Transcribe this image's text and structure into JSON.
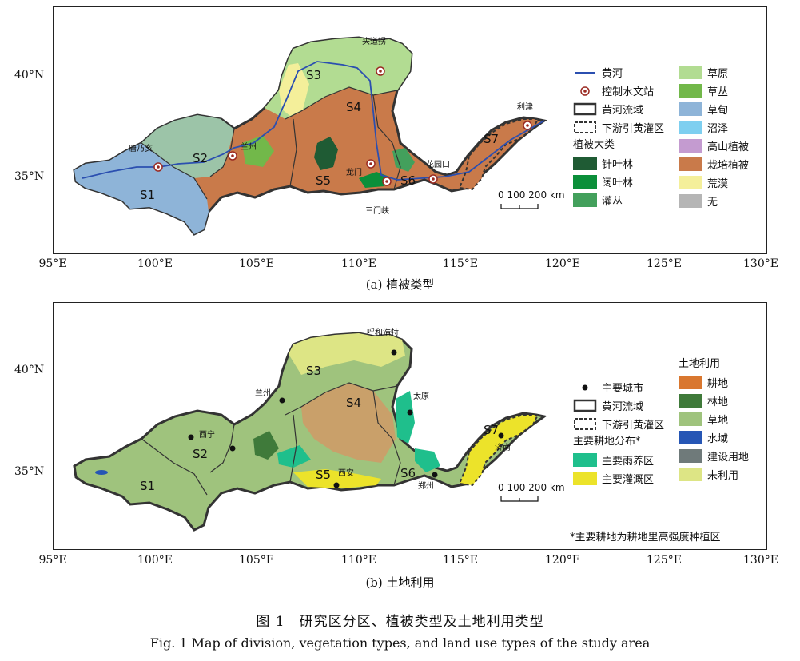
{
  "figure": {
    "caption_zh": "图 1　研究区分区、植被类型及土地利用类型",
    "caption_en": "Fig. 1   Map of division, vegetation types, and land use types of the study area"
  },
  "axes": {
    "x_ticks": [
      "95°E",
      "100°E",
      "105°E",
      "110°E",
      "115°E",
      "120°E",
      "125°E",
      "130°E"
    ],
    "y_ticks": [
      "40°N",
      "35°N"
    ]
  },
  "panel_a": {
    "subtitle": "(a) 植被类型",
    "regions": [
      "S1",
      "S2",
      "S3",
      "S4",
      "S5",
      "S6",
      "S7"
    ],
    "stations": [
      "唐乃亥",
      "兰州",
      "头道拐",
      "龙门",
      "三门峡",
      "花园口",
      "利津"
    ],
    "legend_col1": {
      "items": [
        {
          "label": "黄河",
          "symbol": "river-line"
        },
        {
          "label": "控制水文站",
          "symbol": "station-marker"
        },
        {
          "label": "黄河流域",
          "symbol": "basin-outline"
        },
        {
          "label": "下游引黄灌区",
          "symbol": "irrigation-outline"
        }
      ],
      "heading": "植被大类",
      "veg": [
        {
          "label": "针叶林",
          "color": "#1f5b34"
        },
        {
          "label": "阔叶林",
          "color": "#0b8f3a"
        },
        {
          "label": "灌丛",
          "color": "#43a05c"
        }
      ]
    },
    "legend_col2": [
      {
        "label": "草原",
        "color": "#b2dc92"
      },
      {
        "label": "草丛",
        "color": "#72b84a"
      },
      {
        "label": "草甸",
        "color": "#8eb4d8"
      },
      {
        "label": "沼泽",
        "color": "#7ecff0"
      },
      {
        "label": "高山植被",
        "color": "#c49bd0"
      },
      {
        "label": "栽培植被",
        "color": "#c97a4a"
      },
      {
        "label": "荒漠",
        "color": "#f4ef9a"
      },
      {
        "label": "无",
        "color": "#b5b5b5"
      }
    ],
    "scale_label": "0  100  200 km"
  },
  "panel_b": {
    "subtitle": "(b) 土地利用",
    "regions": [
      "S1",
      "S2",
      "S3",
      "S4",
      "S5",
      "S6",
      "S7"
    ],
    "cities": [
      "呼和浩特",
      "兰州",
      "太原",
      "西宁",
      "西安",
      "郑州",
      "济南"
    ],
    "legend_col1": {
      "items": [
        {
          "label": "主要城市",
          "symbol": "city-dot"
        },
        {
          "label": "黄河流域",
          "symbol": "basin-outline"
        },
        {
          "label": "下游引黄灌区",
          "symbol": "irrigation-outline"
        }
      ],
      "heading": "主要耕地分布*",
      "farm": [
        {
          "label": "主要雨养区",
          "color": "#1fbf8c"
        },
        {
          "label": "主要灌溉区",
          "color": "#ece32a"
        }
      ]
    },
    "legend_col2": {
      "heading": "土地利用",
      "items": [
        {
          "label": "耕地",
          "color": "#d9772f"
        },
        {
          "label": "林地",
          "color": "#3f7a3a"
        },
        {
          "label": "草地",
          "color": "#9fc37d"
        },
        {
          "label": "水域",
          "color": "#2656b5"
        },
        {
          "label": "建设用地",
          "color": "#6f7a7a"
        },
        {
          "label": "未利用",
          "color": "#dde585"
        }
      ]
    },
    "scale_label": "0  100  200 km",
    "footnote": "*主要耕地为耕地里高强度种植区"
  },
  "colors": {
    "river": "#2b4fb0",
    "basin_outline": "#333333",
    "station": "#9a2a22"
  }
}
